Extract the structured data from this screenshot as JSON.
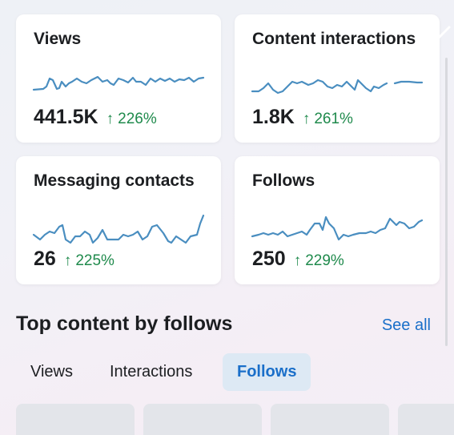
{
  "metrics": [
    {
      "title": "Views",
      "value": "441.5K",
      "change": "226%",
      "arrow": "↑"
    },
    {
      "title": "Content interactions",
      "value": "1.8K",
      "change": "261%",
      "arrow": "↑"
    },
    {
      "title": "Messaging contacts",
      "value": "26",
      "change": "225%",
      "arrow": "↑"
    },
    {
      "title": "Follows",
      "value": "250",
      "change": "229%",
      "arrow": "↑"
    }
  ],
  "section": {
    "title": "Top content by follows",
    "see_all": "See all"
  },
  "tabs": [
    {
      "label": "Views",
      "active": false
    },
    {
      "label": "Interactions",
      "active": false
    },
    {
      "label": "Follows",
      "active": true
    }
  ],
  "colors": {
    "sparkline": "#4a8ec0",
    "positive_change": "#1f8a4c",
    "link": "#1a6fc9",
    "active_tab_bg": "#dde9f4"
  },
  "icons": {
    "change_arrow": "arrow-up-icon"
  }
}
